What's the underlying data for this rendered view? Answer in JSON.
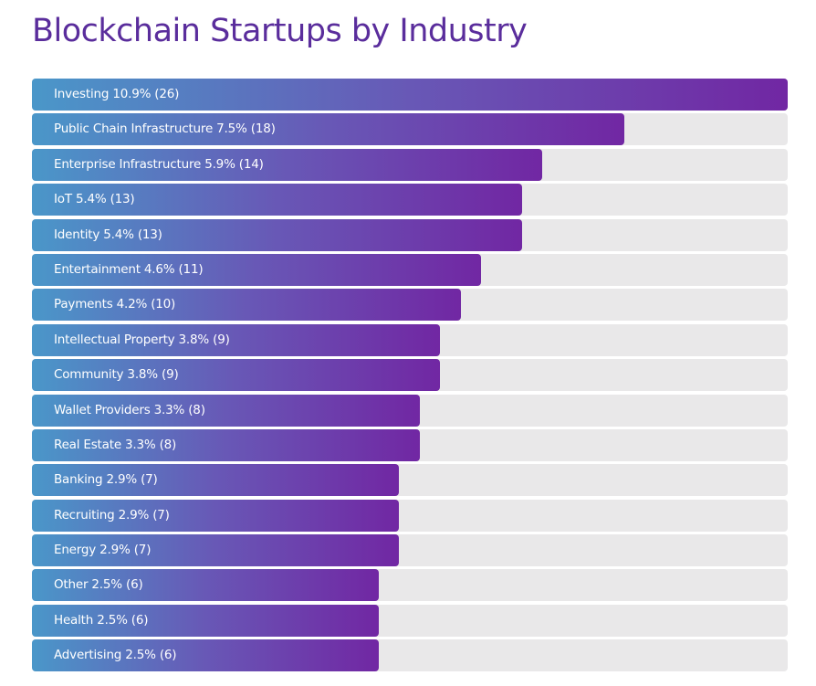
{
  "title": "Blockchain Startups by Industry",
  "colors": {
    "title": "#5a2d9c",
    "bar_start": "#4a97c9",
    "bar_end": "#7127a3",
    "track": "#e9e8e9",
    "label": "#ffffff"
  },
  "chart_data": {
    "type": "bar",
    "orientation": "horizontal",
    "title": "Blockchain Startups by Industry",
    "xlabel": "",
    "ylabel": "",
    "grid": false,
    "legend": "none",
    "xlim": [
      0,
      26
    ],
    "items": [
      {
        "label": "Investing 10.9% (26)",
        "category": "Investing",
        "percent": 10.9,
        "value": 26
      },
      {
        "label": "Public Chain Infrastructure 7.5% (18)",
        "category": "Public Chain Infrastructure",
        "percent": 7.5,
        "value": 18
      },
      {
        "label": "Enterprise Infrastructure 5.9% (14)",
        "category": "Enterprise Infrastructure",
        "percent": 5.9,
        "value": 14
      },
      {
        "label": "IoT 5.4% (13)",
        "category": "IoT",
        "percent": 5.4,
        "value": 13
      },
      {
        "label": "Identity 5.4% (13)",
        "category": "Identity",
        "percent": 5.4,
        "value": 13
      },
      {
        "label": "Entertainment 4.6% (11)",
        "category": "Entertainment",
        "percent": 4.6,
        "value": 11
      },
      {
        "label": "Payments 4.2% (10)",
        "category": "Payments",
        "percent": 4.2,
        "value": 10
      },
      {
        "label": "Intellectual Property 3.8% (9)",
        "category": "Intellectual Property",
        "percent": 3.8,
        "value": 9
      },
      {
        "label": "Community 3.8% (9)",
        "category": "Community",
        "percent": 3.8,
        "value": 9
      },
      {
        "label": "Wallet Providers 3.3% (8)",
        "category": "Wallet Providers",
        "percent": 3.3,
        "value": 8
      },
      {
        "label": "Real Estate 3.3% (8)",
        "category": "Real Estate",
        "percent": 3.3,
        "value": 8
      },
      {
        "label": "Banking 2.9% (7)",
        "category": "Banking",
        "percent": 2.9,
        "value": 7
      },
      {
        "label": "Recruiting 2.9% (7)",
        "category": "Recruiting",
        "percent": 2.9,
        "value": 7
      },
      {
        "label": "Energy 2.9% (7)",
        "category": "Energy",
        "percent": 2.9,
        "value": 7
      },
      {
        "label": "Other 2.5% (6)",
        "category": "Other",
        "percent": 2.5,
        "value": 6
      },
      {
        "label": "Health 2.5% (6)",
        "category": "Health",
        "percent": 2.5,
        "value": 6
      },
      {
        "label": "Advertising 2.5% (6)",
        "category": "Advertising",
        "percent": 2.5,
        "value": 6
      }
    ]
  }
}
